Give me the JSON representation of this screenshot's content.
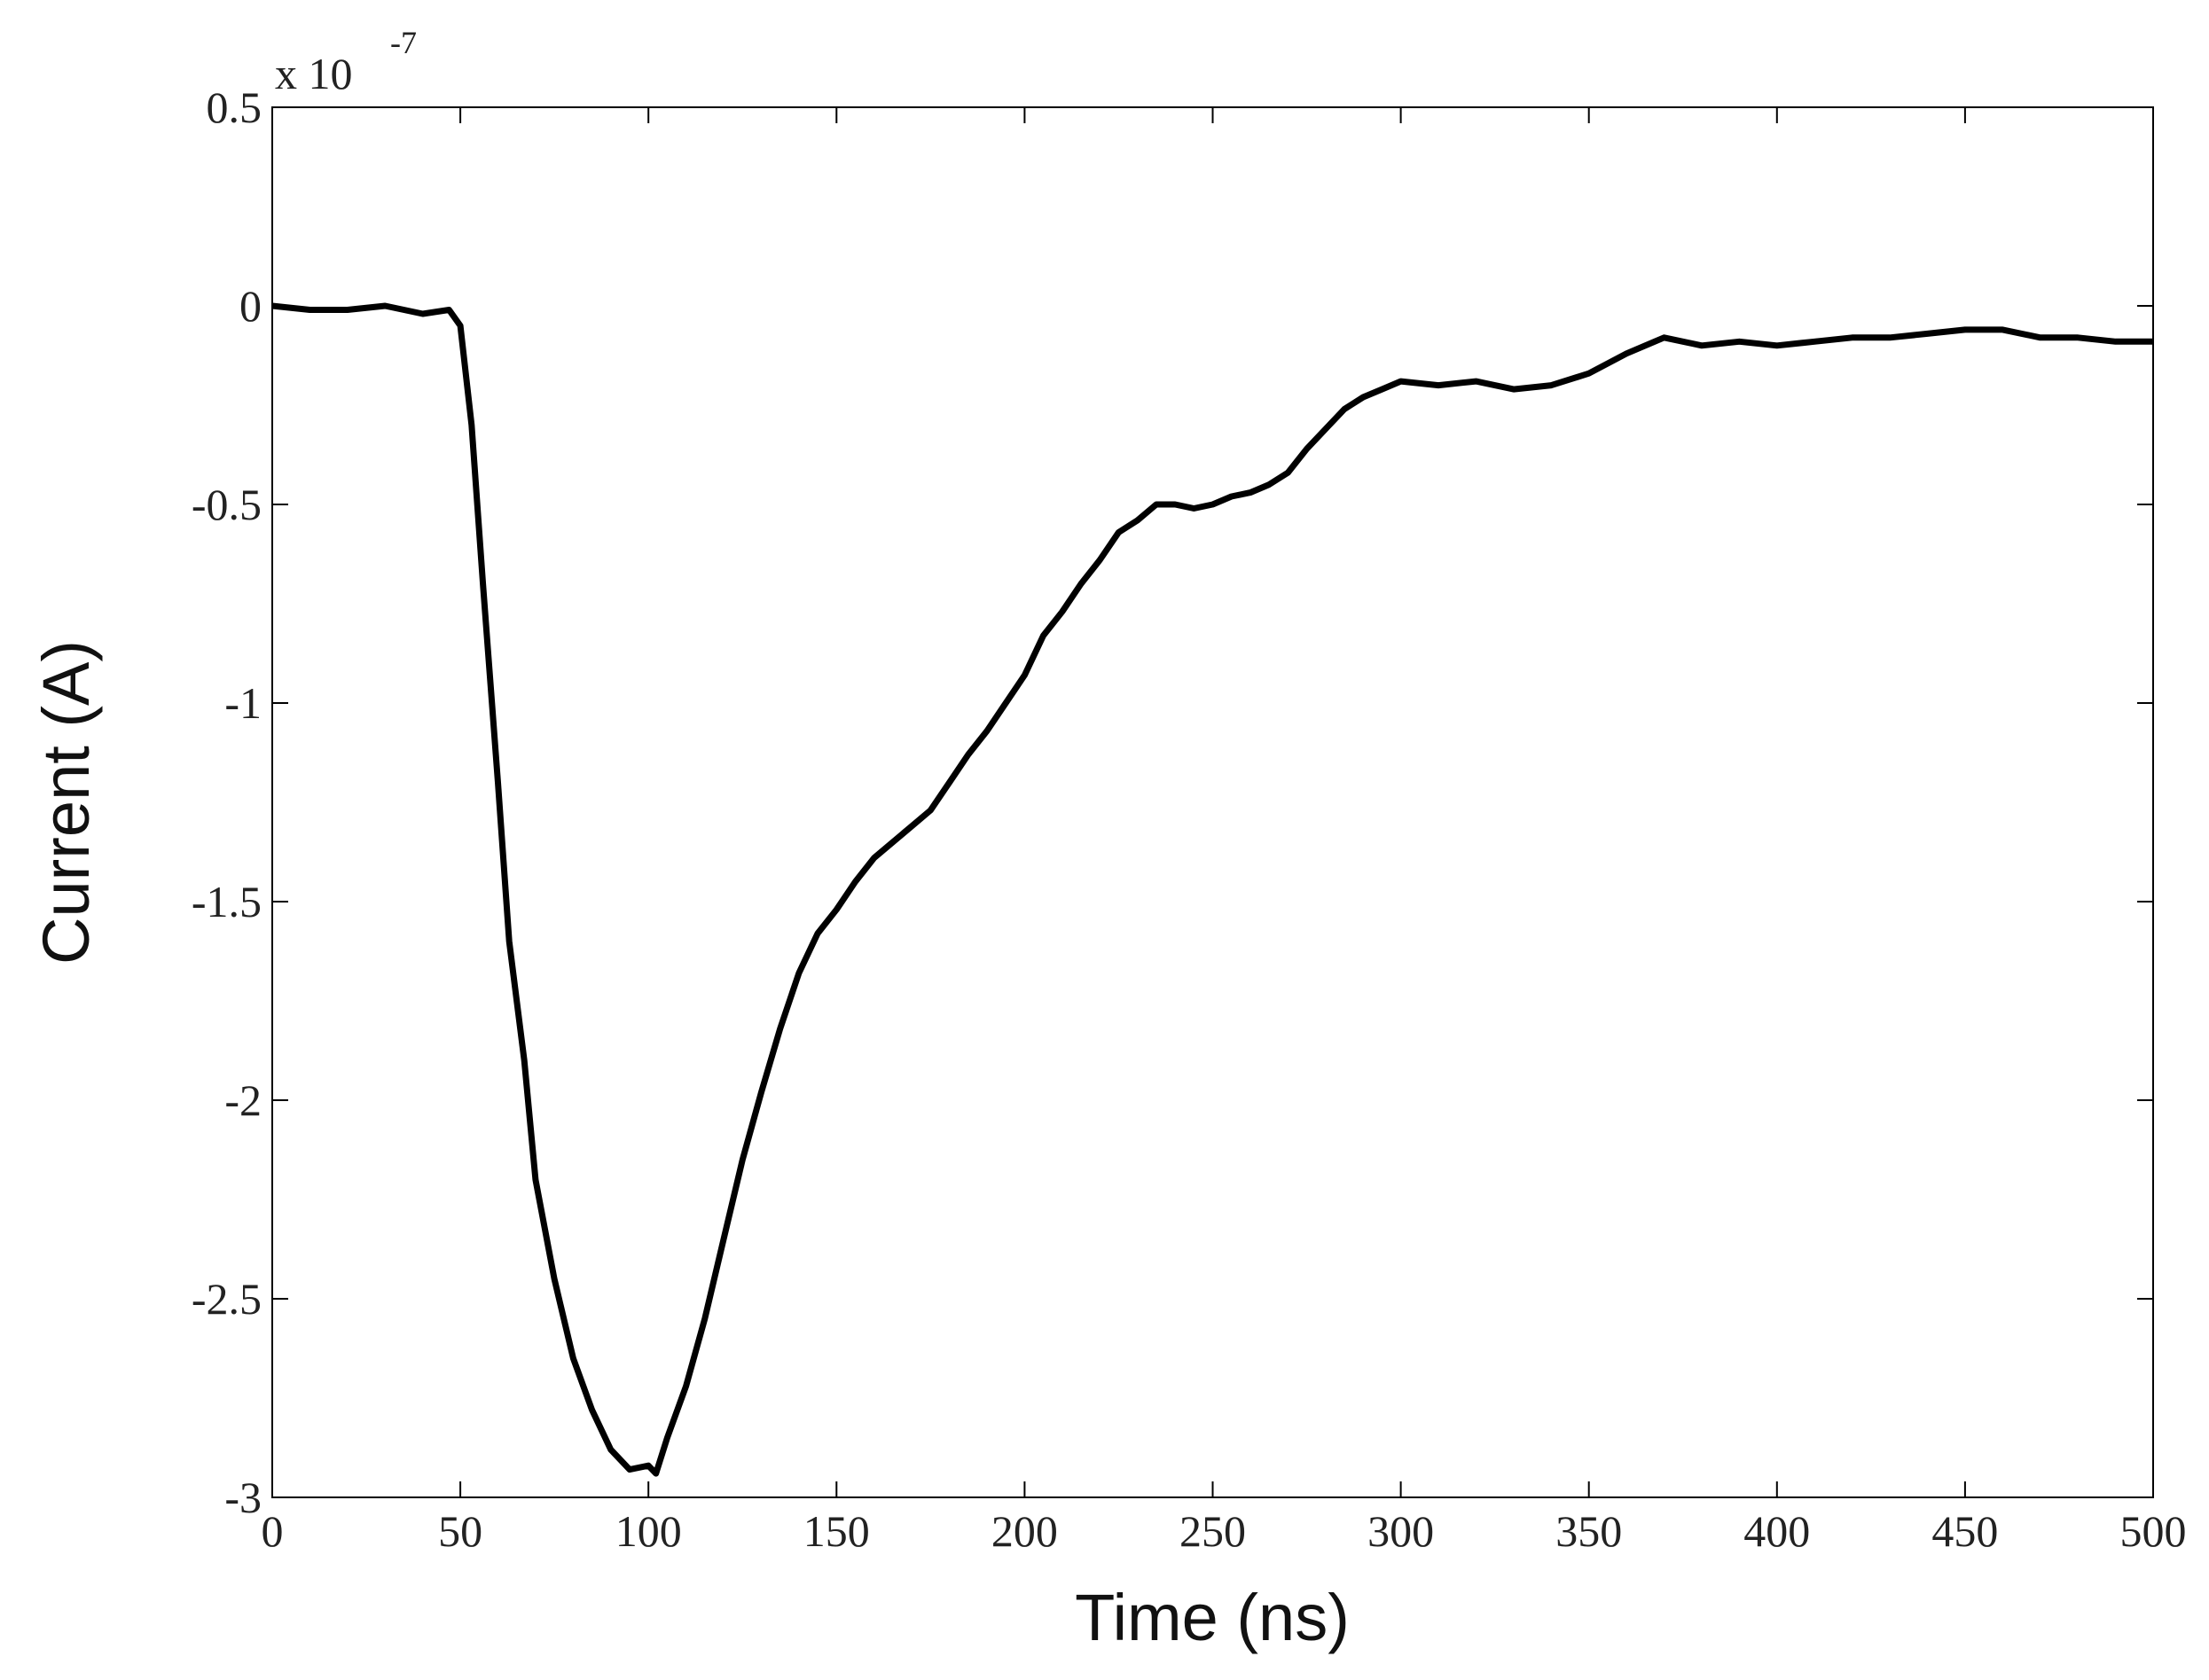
{
  "chart_data": {
    "type": "line",
    "xlabel": "Time (ns)",
    "ylabel": "Current (A)",
    "y_multiplier": "x 10",
    "y_multiplier_exponent": "-7",
    "xlim": [
      0,
      500
    ],
    "xticks": [
      0,
      50,
      100,
      150,
      200,
      250,
      300,
      350,
      400,
      450,
      500
    ],
    "ylim": [
      -3,
      0.5
    ],
    "yticks": [
      -3,
      -2.5,
      -2,
      -1.5,
      -1,
      -0.5,
      0,
      0.5
    ],
    "grid": false,
    "series": [
      {
        "color": "#000000",
        "x": [
          0,
          10,
          20,
          30,
          40,
          47,
          50,
          53,
          56,
          60,
          63,
          67,
          70,
          75,
          80,
          85,
          90,
          95,
          100,
          102,
          105,
          110,
          115,
          120,
          125,
          130,
          135,
          140,
          145,
          150,
          155,
          160,
          165,
          170,
          175,
          180,
          185,
          190,
          195,
          200,
          205,
          210,
          215,
          220,
          225,
          230,
          235,
          240,
          245,
          250,
          255,
          260,
          265,
          270,
          275,
          280,
          285,
          290,
          295,
          300,
          310,
          320,
          330,
          340,
          350,
          360,
          370,
          380,
          390,
          400,
          410,
          420,
          430,
          440,
          450,
          460,
          470,
          480,
          490,
          500
        ],
        "values": [
          0,
          -0.01,
          -0.01,
          0.0,
          -0.02,
          -0.01,
          -0.05,
          -0.3,
          -0.7,
          -1.2,
          -1.6,
          -1.9,
          -2.2,
          -2.45,
          -2.65,
          -2.78,
          -2.88,
          -2.93,
          -2.92,
          -2.94,
          -2.85,
          -2.72,
          -2.55,
          -2.35,
          -2.15,
          -1.98,
          -1.82,
          -1.68,
          -1.58,
          -1.52,
          -1.45,
          -1.39,
          -1.35,
          -1.31,
          -1.27,
          -1.2,
          -1.13,
          -1.07,
          -1.0,
          -0.93,
          -0.83,
          -0.77,
          -0.7,
          -0.64,
          -0.57,
          -0.54,
          -0.5,
          -0.5,
          -0.51,
          -0.5,
          -0.48,
          -0.47,
          -0.45,
          -0.42,
          -0.36,
          -0.31,
          -0.26,
          -0.23,
          -0.21,
          -0.19,
          -0.2,
          -0.19,
          -0.21,
          -0.2,
          -0.17,
          -0.12,
          -0.08,
          -0.1,
          -0.09,
          -0.1,
          -0.09,
          -0.08,
          -0.08,
          -0.07,
          -0.06,
          -0.06,
          -0.08,
          -0.08,
          -0.09,
          -0.09
        ]
      }
    ]
  }
}
